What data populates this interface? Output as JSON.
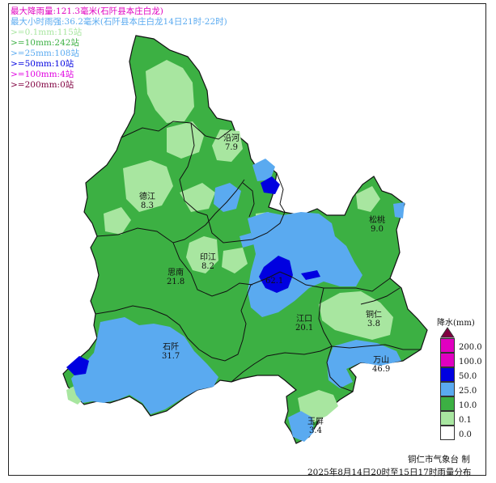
{
  "stats": {
    "max_rain": "最大降雨量:121.3毫米(石阡县本庄白龙)",
    "max_hourly": "最大小时雨强:36.2毫米(石阡县本庄白龙14日21时-22时)",
    "counts": [
      {
        "text": ">=0.1mm:115站",
        "color": "#a8e6a0"
      },
      {
        "text": ">=10mm:242站",
        "color": "#3cb043"
      },
      {
        "text": ">=25mm:108站",
        "color": "#5aaaf0"
      },
      {
        "text": ">=50mm:10站",
        "color": "#0000e0"
      },
      {
        "text": ">=100mm:4站",
        "color": "#e000e0"
      },
      {
        "text": ">=200mm:0站",
        "color": "#800040"
      }
    ]
  },
  "counties": [
    {
      "name": "沿河",
      "value": "7.9"
    },
    {
      "name": "德江",
      "value": "8.3"
    },
    {
      "name": "印江",
      "value": "8.2"
    },
    {
      "name": "思南",
      "value": "21.8"
    },
    {
      "name": "松桃",
      "value": "9.0"
    },
    {
      "name": "石阡",
      "value": "31.7"
    },
    {
      "name": "江口",
      "value": "20.1"
    },
    {
      "name": "铜仁",
      "value": "3.8"
    },
    {
      "name": "万山",
      "value": "46.9"
    },
    {
      "name": "玉屏",
      "value": "3.4"
    },
    {
      "name": "",
      "value": "62.1"
    }
  ],
  "legend": {
    "title": "降水(mm)",
    "items": [
      {
        "value": "200.0",
        "color": "#e000c0"
      },
      {
        "value": "100.0",
        "color": "#0000e0"
      },
      {
        "value": "50.0",
        "color": "#3c96f0"
      },
      {
        "value": "25.0",
        "color": "#3cb043"
      },
      {
        "value": "10.0",
        "color": "#a8e6a0"
      },
      {
        "value": "0.1",
        "color": "#ffffff"
      },
      {
        "value": "0.0",
        "color": "#ffffff"
      }
    ],
    "cap_color": "#800040"
  },
  "credit": "铜仁市气象台  制",
  "caption": "2025年8月14日20时至15日17时雨量分布",
  "colors": {
    "light_green": "#a8e6a0",
    "green": "#3cb043",
    "blue": "#5aaaf0",
    "dark_blue": "#0000e0",
    "magenta": "#e000c0",
    "border": "#111111"
  }
}
